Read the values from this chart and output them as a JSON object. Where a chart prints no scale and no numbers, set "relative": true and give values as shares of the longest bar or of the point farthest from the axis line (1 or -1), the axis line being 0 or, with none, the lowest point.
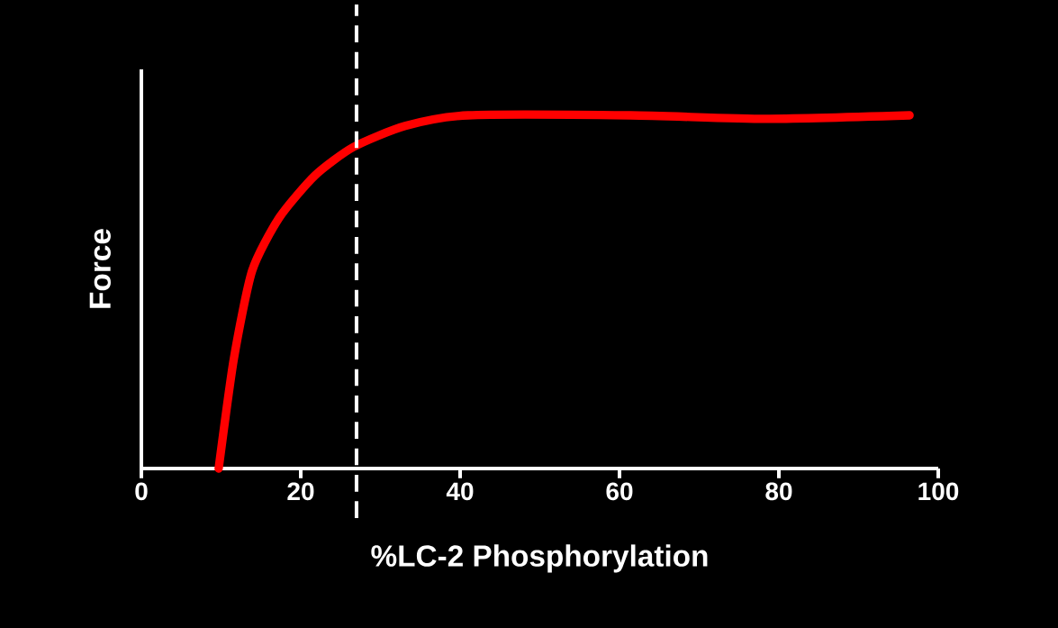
{
  "chart_data": {
    "type": "line",
    "relative": true,
    "xlabel": "%LC-2  Phosphorylation",
    "ylabel": "Force",
    "x": [
      9.7,
      11.6,
      13.9,
      17.3,
      21.8,
      26.6,
      33.1,
      41,
      61.4,
      78.3,
      96.4
    ],
    "series": [
      {
        "color": "#ff0000",
        "values": [
          0,
          0.31,
          0.56,
          0.71,
          0.83,
          0.91,
          0.97,
          1.0,
          1.0,
          0.99,
          1.0
        ]
      }
    ],
    "xlim": [
      0,
      100
    ],
    "xticks": [
      0,
      20,
      40,
      60,
      80,
      100
    ],
    "ref_lines": [
      {
        "axis": "x",
        "value": 27,
        "color": "#ffffff",
        "line_style": "dashed"
      }
    ],
    "grid": false,
    "marker": "none",
    "line_style": "solid"
  }
}
